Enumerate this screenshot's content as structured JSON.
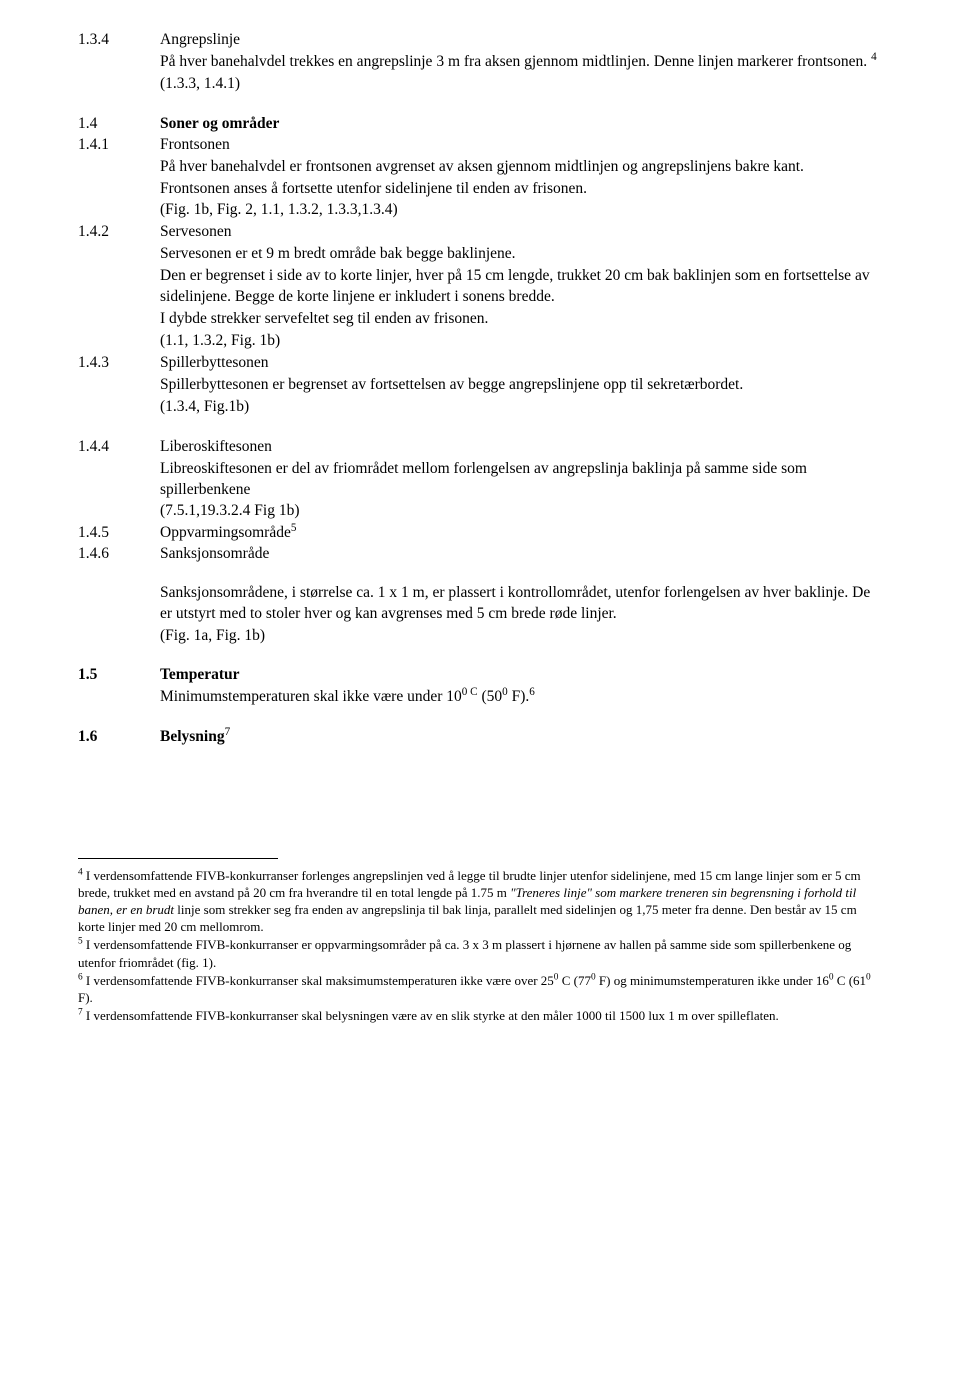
{
  "s134": {
    "num": "1.3.4",
    "title": "Angrepslinje",
    "p1": "På hver banehalvdel trekkes en angrepslinje 3 m fra aksen gjennom midtlinjen. Denne linjen markerer frontsonen.",
    "sup": "4",
    "ref": "(1.3.3, 1.4.1)"
  },
  "s14": {
    "num": "1.4",
    "title": "Soner og områder"
  },
  "s141": {
    "num": "1.4.1",
    "title": "Frontsonen",
    "p1": "På hver banehalvdel er frontsonen avgrenset av aksen gjennom midtlinjen og angrepslinjens bakre kant.",
    "p2": "Frontsonen anses å fortsette utenfor sidelinjene til enden av frisonen.",
    "ref": "(Fig. 1b, Fig. 2, 1.1, 1.3.2, 1.3.3,1.3.4)"
  },
  "s142": {
    "num": "1.4.2",
    "title": "Servesonen",
    "p1": "Servesonen er et 9 m bredt område bak begge baklinjene.",
    "p2": "Den er begrenset i side av to korte linjer, hver på 15 cm lengde, trukket 20 cm bak baklinjen som en fortsettelse av sidelinjene. Begge de korte linjene er inkludert i sonens bredde.",
    "p3": "I dybde strekker servefeltet seg til enden av frisonen.",
    "ref": "(1.1, 1.3.2, Fig. 1b)"
  },
  "s143": {
    "num": "1.4.3",
    "title": "Spillerbyttesonen",
    "p1": "Spillerbyttesonen er begrenset av fortsettelsen av begge angrepslinjene opp til sekretærbordet.",
    "ref": "(1.3.4, Fig.1b)"
  },
  "s144": {
    "num": "1.4.4",
    "title": "Liberoskiftesonen",
    "p1": "Libreoskiftesonen er del av friområdet mellom forlengelsen av angrepslinja baklinja på samme side som spillerbenkene",
    "ref": "(7.5.1,19.3.2.4 Fig 1b)"
  },
  "s145": {
    "num": "1.4.5",
    "title": "Oppvarmingsområde",
    "sup": "5"
  },
  "s146": {
    "num": "1.4.6",
    "title": "Sanksjonsområde",
    "p1": "Sanksjonsområdene, i størrelse ca. 1 x 1 m, er plassert i kontrollområdet, utenfor forlengelsen av hver baklinje. De er utstyrt med to stoler hver og kan avgrenses med 5 cm brede røde linjer.",
    "ref": "(Fig. 1a, Fig. 1b)"
  },
  "s15": {
    "num": "1.5",
    "title": "Temperatur",
    "p1a": "Minimumstemperaturen skal ikke være under 10",
    "exp1": "0 C",
    "p1b": " (50",
    "exp2": "0",
    "p1c": " F).",
    "sup": "6"
  },
  "s16": {
    "num": "1.6",
    "title": "Belysning",
    "sup": "7"
  },
  "fn4": {
    "mark": "4",
    "t1": " I verdensomfattende FIVB-konkurranser forlenges angrepslinjen ved å legge til brudte linjer utenfor sidelinjene, med 15 cm lange linjer som er 5 cm brede, trukket med en avstand på 20 cm fra hverandre til en total lengde på 1.75 m ",
    "it": "\"Treneres linje\" som markere treneren sin begrensning i forhold til banen, er en brudt",
    "t2": " linje som strekker seg fra enden av angrepslinja til bak linja, parallelt med sidelinjen og  1,75 meter fra denne. Den består av 15 cm korte linjer med 20 cm mellomrom."
  },
  "fn5": {
    "mark": "5",
    "t1": " I verdensomfattende FIVB-konkurranser er oppvarmingsområder på ca. 3 x 3 m  plassert i hjørnene av hallen på samme side som spillerbenkene og utenfor friområdet (fig. 1)."
  },
  "fn6": {
    "mark": "6",
    "t1a": " I verdensomfattende FIVB-konkurranser skal maksimumstemperaturen ikke være over 25",
    "exp1": "0",
    "t1b": " C (77",
    "exp2": "0",
    "t1c": " F) og minimumstemperaturen ikke under 16",
    "exp3": "0",
    "t1d": " C (61",
    "exp4": "0",
    "t1e": " F)."
  },
  "fn7": {
    "mark": "7",
    "t1": " I verdensomfattende FIVB-konkurranser skal belysningen være av en slik styrke at den måler 1000 til 1500 lux 1 m over spilleflaten."
  }
}
